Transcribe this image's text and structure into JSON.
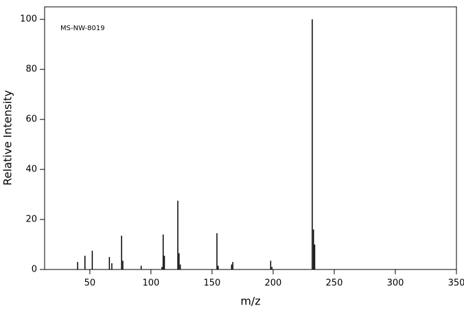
{
  "chart_data": {
    "type": "bar",
    "annotation": "MS-NW-8019",
    "x_label": "m/z",
    "y_label": "Relative Intensity",
    "x": [
      40,
      46,
      52,
      66,
      68,
      76,
      77,
      92,
      109,
      110,
      111,
      122,
      123,
      124,
      154,
      155,
      166,
      167,
      198,
      199,
      232,
      233,
      234
    ],
    "values": [
      3,
      5.5,
      7.5,
      5,
      2.5,
      13.5,
      3.5,
      1.5,
      1,
      14,
      5.5,
      27.5,
      6.5,
      2,
      14.5,
      1.5,
      2,
      3,
      3.5,
      1,
      100,
      16,
      10
    ],
    "color": "#000000",
    "xlim": [
      13,
      350
    ],
    "ylim": [
      0,
      105
    ],
    "xticks": [
      50,
      100,
      150,
      200,
      250,
      300,
      350
    ],
    "yticks": [
      0,
      20,
      40,
      60,
      80,
      100
    ]
  }
}
